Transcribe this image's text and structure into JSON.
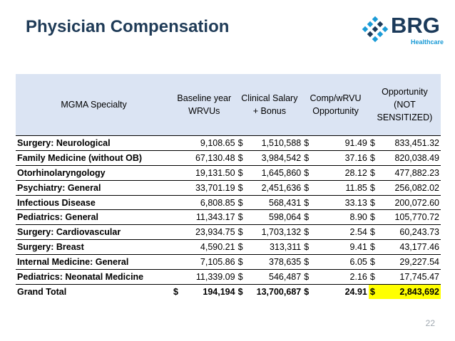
{
  "header": {
    "title": "Physician Compensation",
    "logo_text": "BRG",
    "logo_sub": "Healthcare",
    "logo_color": "#1b3a5a",
    "logo_accent": "#1b9bd6"
  },
  "table": {
    "columns": {
      "specialty": "MGMA Specialty",
      "baseline": "Baseline year WRVUs",
      "salary": "Clinical Salary + Bonus",
      "comp": "Comp/wRVU Opportunity",
      "opportunity": "Opportunity (NOT SENSITIZED)"
    },
    "currency": "$",
    "rows": [
      {
        "specialty": "Surgery: Neurological",
        "baseline": "9,108.65",
        "salary": "1,510,588",
        "comp": "91.49",
        "opportunity": "833,451.32"
      },
      {
        "specialty": "Family Medicine (without OB)",
        "baseline": "67,130.48",
        "salary": "3,984,542",
        "comp": "37.16",
        "opportunity": "820,038.49"
      },
      {
        "specialty": "Otorhinolaryngology",
        "baseline": "19,131.50",
        "salary": "1,645,860",
        "comp": "28.12",
        "opportunity": "477,882.23"
      },
      {
        "specialty": "Psychiatry: General",
        "baseline": "33,701.19",
        "salary": "2,451,636",
        "comp": "11.85",
        "opportunity": "256,082.02"
      },
      {
        "specialty": "Infectious Disease",
        "baseline": "6,808.85",
        "salary": "568,431",
        "comp": "33.13",
        "opportunity": "200,072.60"
      },
      {
        "specialty": "Pediatrics: General",
        "baseline": "11,343.17",
        "salary": "598,064",
        "comp": "8.90",
        "opportunity": "105,770.72"
      },
      {
        "specialty": "Surgery: Cardiovascular",
        "baseline": "23,934.75",
        "salary": "1,703,132",
        "comp": "2.54",
        "opportunity": "60,243.73"
      },
      {
        "specialty": "Surgery: Breast",
        "baseline": "4,590.21",
        "salary": "313,311",
        "comp": "9.41",
        "opportunity": "43,177.46"
      },
      {
        "specialty": "Internal Medicine: General",
        "baseline": "7,105.86",
        "salary": "378,635",
        "comp": "6.05",
        "opportunity": "29,227.54"
      },
      {
        "specialty": "Pediatrics: Neonatal Medicine",
        "baseline": "11,339.09",
        "salary": "546,487",
        "comp": "2.16",
        "opportunity": "17,745.47"
      }
    ],
    "total": {
      "specialty": "Grand Total",
      "baseline": "194,194",
      "salary": "13,700,687",
      "comp": "24.91",
      "opportunity": "2,843,692"
    },
    "header_bg": "#dbe4f3",
    "highlight_color": "#ffff00"
  },
  "footer": {
    "page_number": "22"
  }
}
